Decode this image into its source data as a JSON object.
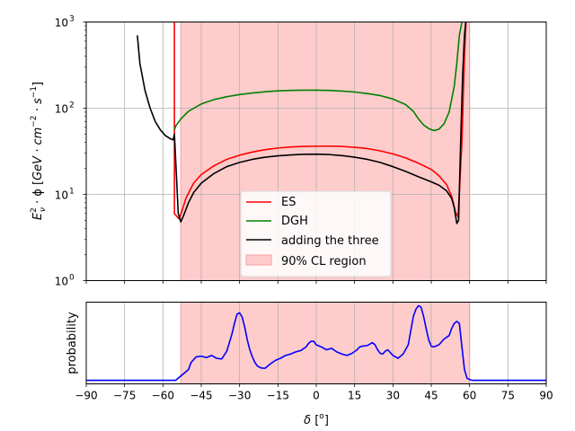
{
  "colors": {
    "es": "#ff0000",
    "dgh": "#008000",
    "sum": "#000000",
    "region": "#ffcccc",
    "region_edge": "#f4a0a0",
    "probability": "#0000ff",
    "grid": "#b0b0b0"
  },
  "chart_data": [
    {
      "type": "line",
      "yscale": "log",
      "xlim": [
        -90,
        90
      ],
      "ylim": [
        1,
        1000
      ],
      "ylabel_tex": "E_ν² · φ [GeV · cm⁻² · s⁻¹]",
      "ylabel_parts": {
        "e": "E",
        "nu": "ν",
        "two": "2",
        "mid": " · ϕ [",
        "unit_a": "GeV · cm",
        "m2": "−2",
        "unit_b": " · s",
        "m1": "−1",
        "end": "]"
      },
      "y_ticks": [
        {
          "value": 1,
          "label_base": "10",
          "label_exp": "0"
        },
        {
          "value": 10,
          "label_base": "10",
          "label_exp": "1"
        },
        {
          "value": 100,
          "label_base": "10",
          "label_exp": "2"
        },
        {
          "value": 1000,
          "label_base": "10",
          "label_exp": "3"
        }
      ],
      "grid": true,
      "legend_position": "bottom-center",
      "region": {
        "name": "90% CL region",
        "x0": -53,
        "x1": 60
      },
      "series": [
        {
          "name": "ES",
          "key": "es",
          "x": [
            -55.5,
            -55.5,
            -53.7,
            -52.5,
            -51,
            -48,
            -45,
            -40,
            -35,
            -30,
            -25,
            -20,
            -15,
            -10,
            -5,
            0,
            5,
            10,
            15,
            20,
            25,
            30,
            35,
            40,
            45,
            48,
            51,
            53,
            54.5,
            55.5,
            57,
            58,
            58.6
          ],
          "y": [
            1000,
            6,
            5.2,
            6.5,
            9,
            13.5,
            17,
            21.5,
            25.5,
            28.5,
            31,
            33,
            34.5,
            35.5,
            36,
            36.3,
            36.3,
            36,
            35.2,
            34,
            32,
            29.5,
            26.5,
            23,
            19.5,
            16.5,
            13,
            9.5,
            6.2,
            5.5,
            40,
            400,
            1000
          ]
        },
        {
          "name": "DGH",
          "key": "dgh",
          "x": [
            -55.5,
            -55,
            -53,
            -50,
            -45,
            -40,
            -35,
            -30,
            -25,
            -20,
            -15,
            -10,
            -5,
            0,
            5,
            10,
            15,
            20,
            25,
            30,
            35,
            38,
            40,
            42,
            44,
            46,
            48,
            50,
            52,
            54,
            55,
            56,
            57
          ],
          "y": [
            56,
            62,
            75,
            92,
            112,
            126,
            136,
            144,
            150,
            155,
            159,
            161,
            162,
            162,
            161,
            158,
            154,
            148,
            140,
            128,
            110,
            92,
            75,
            64,
            58,
            55,
            57,
            66,
            90,
            180,
            330,
            700,
            1000
          ]
        },
        {
          "name": "adding the three",
          "key": "sum",
          "x": [
            -70,
            -69,
            -67,
            -65,
            -63,
            -61,
            -59,
            -57,
            -56,
            -55.5,
            -54,
            -53,
            -52,
            -50,
            -48,
            -45,
            -40,
            -35,
            -30,
            -25,
            -20,
            -15,
            -10,
            -5,
            0,
            5,
            10,
            15,
            20,
            25,
            30,
            35,
            40,
            45,
            48,
            51,
            53,
            54,
            55,
            55.7,
            56.5,
            57.3,
            58,
            58.5
          ],
          "y": [
            700,
            330,
            160,
            100,
            70,
            56,
            48,
            44,
            43,
            50,
            6,
            4.8,
            5.6,
            8,
            10.5,
            13.5,
            17.5,
            21,
            23.5,
            25.5,
            27,
            28,
            28.7,
            29.2,
            29.3,
            29,
            28.2,
            27,
            25.5,
            23.5,
            21,
            18.5,
            16,
            14,
            12.8,
            11,
            9,
            7,
            4.6,
            5,
            40,
            250,
            700,
            1000
          ]
        }
      ]
    },
    {
      "type": "line",
      "xlim": [
        -90,
        90
      ],
      "ylim": [
        0,
        1.15
      ],
      "xlabel": "δ [°]",
      "xlabel_parts": {
        "sym": "δ",
        "rest": " [",
        "deg": "o",
        "end": "]"
      },
      "ylabel": "probability",
      "x_ticks": [
        -90,
        -75,
        -60,
        -45,
        -30,
        -15,
        0,
        15,
        30,
        45,
        60,
        75,
        90
      ],
      "x_tick_labels": [
        "−90",
        "−75",
        "−60",
        "−45",
        "−30",
        "−15",
        "0",
        "15",
        "30",
        "45",
        "60",
        "75",
        "90"
      ],
      "grid": true,
      "region": {
        "name": "90% CL region",
        "x0": -53,
        "x1": 60
      },
      "series": [
        {
          "name": "probability",
          "key": "probability",
          "x": [
            -90,
            -55,
            -54,
            -52,
            -50,
            -49,
            -47,
            -45,
            -43,
            -41,
            -39,
            -37,
            -35,
            -33,
            -32,
            -31,
            -30,
            -29,
            -28,
            -27,
            -26,
            -25,
            -24,
            -23,
            -22,
            -21,
            -20,
            -18,
            -16,
            -14,
            -12,
            -10,
            -8,
            -6,
            -4,
            -3,
            -2,
            -1,
            0,
            2,
            4,
            6,
            8,
            10,
            12,
            14,
            16,
            17,
            18,
            20,
            22,
            23,
            24,
            25,
            26,
            27,
            28,
            30,
            32,
            34,
            36,
            37,
            38,
            39,
            40,
            41,
            42,
            43,
            44,
            45,
            46,
            48,
            50,
            52,
            53,
            54,
            55,
            56,
            57,
            58,
            59,
            60,
            61,
            62,
            90
          ],
          "y": [
            0.05,
            0.05,
            0.08,
            0.14,
            0.2,
            0.3,
            0.38,
            0.39,
            0.37,
            0.4,
            0.36,
            0.35,
            0.46,
            0.7,
            0.85,
            0.98,
            1.0,
            0.94,
            0.8,
            0.62,
            0.48,
            0.38,
            0.3,
            0.25,
            0.23,
            0.22,
            0.22,
            0.28,
            0.33,
            0.36,
            0.4,
            0.42,
            0.45,
            0.47,
            0.52,
            0.57,
            0.6,
            0.6,
            0.55,
            0.52,
            0.48,
            0.5,
            0.45,
            0.42,
            0.4,
            0.43,
            0.48,
            0.52,
            0.53,
            0.54,
            0.58,
            0.55,
            0.48,
            0.43,
            0.42,
            0.46,
            0.48,
            0.4,
            0.36,
            0.42,
            0.55,
            0.75,
            0.95,
            1.05,
            1.1,
            1.08,
            0.95,
            0.78,
            0.62,
            0.53,
            0.52,
            0.55,
            0.63,
            0.68,
            0.78,
            0.85,
            0.88,
            0.85,
            0.52,
            0.2,
            0.08,
            0.06,
            0.05,
            0.05,
            0.05
          ]
        }
      ]
    }
  ]
}
